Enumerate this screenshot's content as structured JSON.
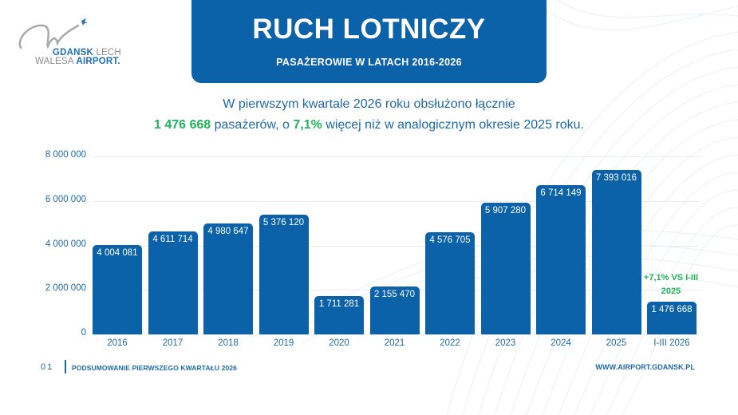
{
  "logo": {
    "line1_bold": "GDANSK",
    "line1_light": "LECH",
    "line2_light": "WALESA",
    "line2_bold": "AIRPORT."
  },
  "header": {
    "title": "RUCH LOTNICZY",
    "subtitle": "PASAŻEROWIE W LATACH 2016-2026"
  },
  "summary": {
    "line1": "W pierwszym kwartale 2026 roku obsłużono łącznie",
    "line2_value": "1 476 668",
    "line2_a": " pasażerów, o ",
    "line2_pct": "7,1%",
    "line2_b": " więcej niż w analogicznym okresie 2025 roku."
  },
  "chart_data": {
    "type": "bar",
    "title": "RUCH LOTNICZY",
    "subtitle": "PASAŻEROWIE W LATACH 2016-2026",
    "xlabel": "",
    "ylabel": "",
    "ylim": [
      0,
      8000000
    ],
    "grid": true,
    "legend": "none",
    "y_ticks": [
      "0",
      "2 000 000",
      "4 000 000",
      "6 000 000",
      "8 000 000"
    ],
    "categories": [
      "2016",
      "2017",
      "2018",
      "2019",
      "2020",
      "2021",
      "2022",
      "2023",
      "2024",
      "2025",
      "I-III 2026"
    ],
    "values": [
      4004081,
      4611714,
      4980647,
      5376120,
      1711281,
      2155470,
      4576705,
      5907280,
      6714149,
      7393016,
      1476668
    ],
    "value_labels": [
      "4 004 081",
      "4 611 714",
      "4 980 647",
      "5 376 120",
      "1 711 281",
      "2 155 470",
      "4 576 705",
      "5 907 280",
      "6 714 149",
      "7 393 016",
      "1 476 668"
    ],
    "annotations": [
      {
        "category": "I-III 2026",
        "text_line1": "+7,1% VS I-III",
        "text_line2": "2025"
      }
    ],
    "bar_color": "#0b62a8"
  },
  "footer": {
    "page_number": "01",
    "left_text": "PODSUMOWANIE PIERWSZEGO KWARTAŁU 2026",
    "right_text": "WWW.AIRPORT.GDANSK.PL"
  },
  "colors": {
    "brand_blue": "#0b62a8",
    "text_blue": "#1d6aa8",
    "accent_green": "#22b35a"
  }
}
